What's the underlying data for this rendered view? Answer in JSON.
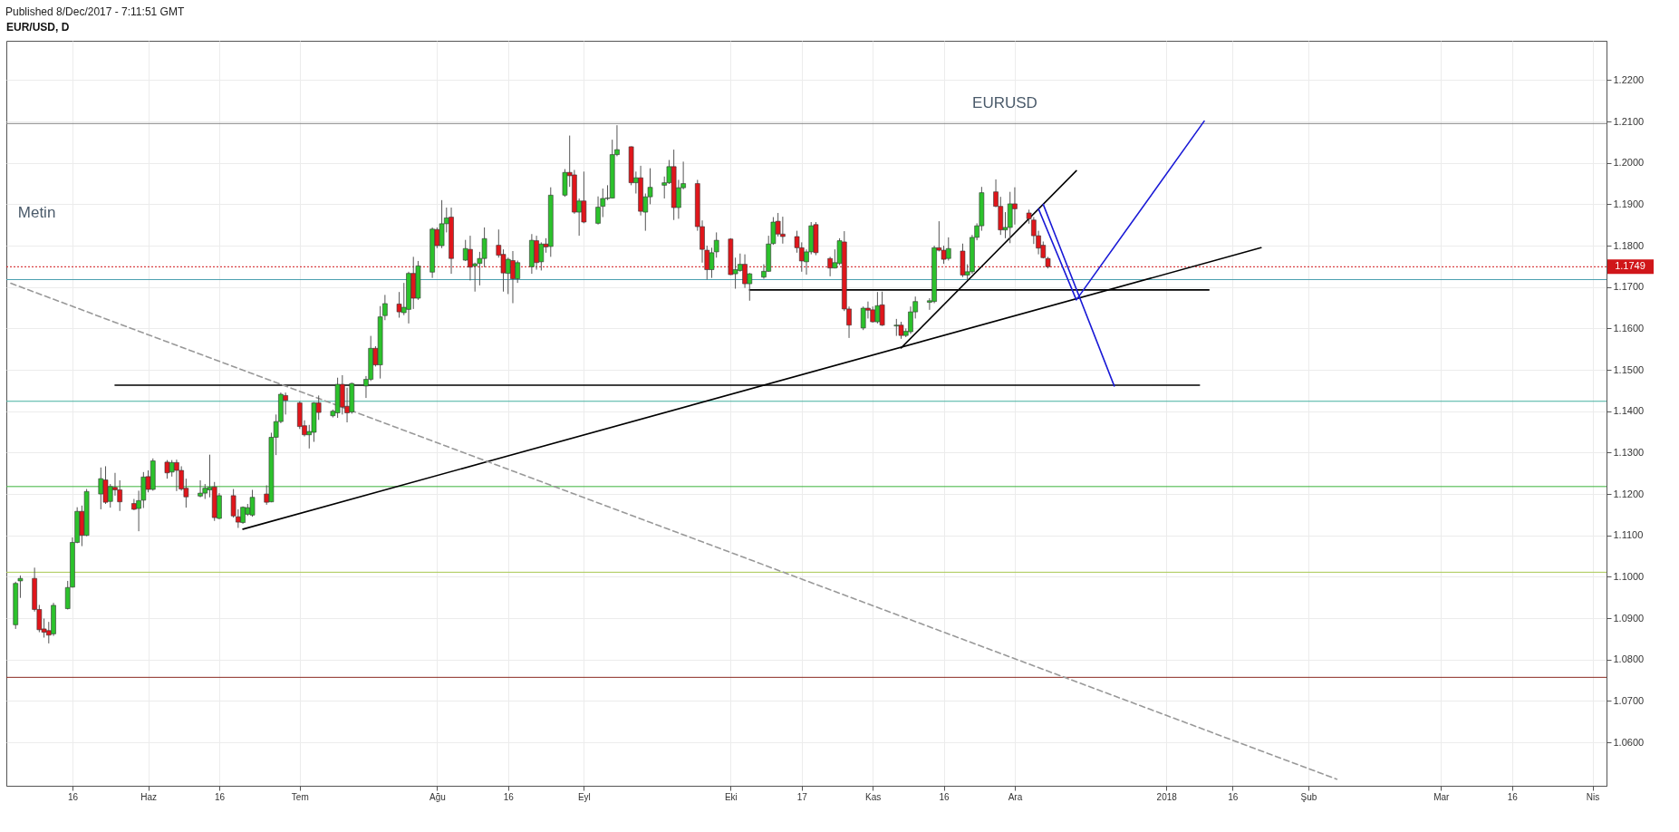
{
  "chart_data": {
    "type": "candlestick",
    "title": "EUR/USD, D",
    "annotations": [
      "Published 8/Dec/2017 - 7:11:51 GMT",
      "EURUSD",
      "Metin"
    ],
    "x": [
      "2017-05-04",
      "2017-05-05",
      "2017-05-08",
      "2017-05-09",
      "2017-05-10",
      "2017-05-11",
      "2017-05-12",
      "2017-05-15",
      "2017-05-16",
      "2017-05-17",
      "2017-05-18",
      "2017-05-19",
      "2017-05-22",
      "2017-05-23",
      "2017-05-24",
      "2017-05-25",
      "2017-05-26",
      "2017-05-29",
      "2017-05-30",
      "2017-05-31",
      "2017-06-01",
      "2017-06-02",
      "2017-06-05",
      "2017-06-06",
      "2017-06-07",
      "2017-06-08",
      "2017-06-09",
      "2017-06-12",
      "2017-06-13",
      "2017-06-14",
      "2017-06-15",
      "2017-06-16",
      "2017-06-19",
      "2017-06-20",
      "2017-06-21",
      "2017-06-22",
      "2017-06-23",
      "2017-06-26",
      "2017-06-27",
      "2017-06-28",
      "2017-06-29",
      "2017-06-30",
      "2017-07-03",
      "2017-07-04",
      "2017-07-05",
      "2017-07-06",
      "2017-07-07",
      "2017-07-10",
      "2017-07-11",
      "2017-07-12",
      "2017-07-13",
      "2017-07-14",
      "2017-07-17",
      "2017-07-18",
      "2017-07-19",
      "2017-07-20",
      "2017-07-21",
      "2017-07-24",
      "2017-07-25",
      "2017-07-26",
      "2017-07-27",
      "2017-07-28",
      "2017-07-31",
      "2017-08-01",
      "2017-08-02",
      "2017-08-03",
      "2017-08-04",
      "2017-08-07",
      "2017-08-08",
      "2017-08-09",
      "2017-08-10",
      "2017-08-11",
      "2017-08-14",
      "2017-08-15",
      "2017-08-16",
      "2017-08-17",
      "2017-08-18",
      "2017-08-21",
      "2017-08-22",
      "2017-08-23",
      "2017-08-24",
      "2017-08-25",
      "2017-08-28",
      "2017-08-29",
      "2017-08-30",
      "2017-08-31",
      "2017-09-01",
      "2017-09-04",
      "2017-09-05",
      "2017-09-06",
      "2017-09-07",
      "2017-09-08",
      "2017-09-11",
      "2017-09-12",
      "2017-09-13",
      "2017-09-14",
      "2017-09-15",
      "2017-09-18",
      "2017-09-19",
      "2017-09-20",
      "2017-09-21",
      "2017-09-22",
      "2017-09-25",
      "2017-09-26",
      "2017-09-27",
      "2017-09-28",
      "2017-09-29",
      "2017-10-02",
      "2017-10-03",
      "2017-10-04",
      "2017-10-05",
      "2017-10-06",
      "2017-10-09",
      "2017-10-10",
      "2017-10-11",
      "2017-10-12",
      "2017-10-13",
      "2017-10-16",
      "2017-10-17",
      "2017-10-18",
      "2017-10-19",
      "2017-10-20",
      "2017-10-23",
      "2017-10-24",
      "2017-10-25",
      "2017-10-26",
      "2017-10-27",
      "2017-10-30",
      "2017-10-31",
      "2017-11-01",
      "2017-11-02",
      "2017-11-03",
      "2017-11-06",
      "2017-11-07",
      "2017-11-08",
      "2017-11-09",
      "2017-11-10",
      "2017-11-13",
      "2017-11-14",
      "2017-11-15",
      "2017-11-16",
      "2017-11-17",
      "2017-11-20",
      "2017-11-21",
      "2017-11-22",
      "2017-11-23",
      "2017-11-24",
      "2017-11-27",
      "2017-11-28",
      "2017-11-29",
      "2017-11-30",
      "2017-12-01",
      "2017-12-04",
      "2017-12-05",
      "2017-12-06",
      "2017-12-07",
      "2017-12-08"
    ],
    "ohlc": [
      [
        1.0884,
        1.0988,
        1.0874,
        1.0984
      ],
      [
        1.099,
        1.1003,
        1.0949,
        1.0996
      ],
      [
        1.0996,
        1.1022,
        1.0916,
        1.0921
      ],
      [
        1.0921,
        1.0932,
        1.0866,
        1.0872
      ],
      [
        1.0874,
        1.0899,
        1.0853,
        1.0866
      ],
      [
        1.087,
        1.0891,
        1.0839,
        1.0859
      ],
      [
        1.0862,
        1.0937,
        1.0857,
        1.0931
      ],
      [
        1.0923,
        1.099,
        1.0921,
        1.0974
      ],
      [
        1.0975,
        1.1095,
        1.0974,
        1.1083
      ],
      [
        1.1083,
        1.1168,
        1.1081,
        1.1158
      ],
      [
        1.1158,
        1.1172,
        1.1074,
        1.11
      ],
      [
        1.11,
        1.1212,
        1.1098,
        1.1206
      ],
      [
        1.12,
        1.1264,
        1.1163,
        1.1237
      ],
      [
        1.1234,
        1.1267,
        1.1176,
        1.118
      ],
      [
        1.1182,
        1.1224,
        1.1167,
        1.1218
      ],
      [
        1.1216,
        1.1251,
        1.1196,
        1.121
      ],
      [
        1.121,
        1.1233,
        1.1159,
        1.1181
      ],
      [
        1.1177,
        1.1188,
        1.1161,
        1.1163
      ],
      [
        1.1165,
        1.1208,
        1.111,
        1.1184
      ],
      [
        1.1185,
        1.1253,
        1.1166,
        1.1241
      ],
      [
        1.1242,
        1.1257,
        1.1204,
        1.1211
      ],
      [
        1.1211,
        1.1286,
        1.1208,
        1.128
      ],
      [
        1.1277,
        1.1282,
        1.1237,
        1.1251
      ],
      [
        1.1253,
        1.1282,
        1.1242,
        1.1276
      ],
      [
        1.1276,
        1.1283,
        1.1207,
        1.1257
      ],
      [
        1.1257,
        1.1267,
        1.1208,
        1.1212
      ],
      [
        1.1214,
        1.1237,
        1.1167,
        1.1193
      ],
      [
        1.1195,
        1.1233,
        1.1192,
        1.1202
      ],
      [
        1.1202,
        1.1224,
        1.1188,
        1.1214
      ],
      [
        1.121,
        1.1295,
        1.1192,
        1.1216
      ],
      [
        1.1217,
        1.1229,
        1.1135,
        1.1143
      ],
      [
        1.1141,
        1.1202,
        1.1139,
        1.1196
      ],
      [
        1.1196,
        1.1212,
        1.1143,
        1.1147
      ],
      [
        1.1145,
        1.1163,
        1.1118,
        1.1132
      ],
      [
        1.1131,
        1.117,
        1.1128,
        1.1168
      ],
      [
        1.1151,
        1.1176,
        1.1147,
        1.1167
      ],
      [
        1.1149,
        1.121,
        1.1145,
        1.1192
      ],
      [
        1.12,
        1.1221,
        1.1174,
        1.118
      ],
      [
        1.1181,
        1.1348,
        1.118,
        1.1337
      ],
      [
        1.1337,
        1.1392,
        1.1294,
        1.1375
      ],
      [
        1.1375,
        1.1445,
        1.1371,
        1.1441
      ],
      [
        1.1438,
        1.1445,
        1.1392,
        1.1426
      ],
      [
        1.142,
        1.1424,
        1.1357,
        1.1363
      ],
      [
        1.1365,
        1.1378,
        1.1339,
        1.1343
      ],
      [
        1.1343,
        1.1367,
        1.131,
        1.1351
      ],
      [
        1.1349,
        1.1422,
        1.1326,
        1.142
      ],
      [
        1.142,
        1.1438,
        1.1379,
        1.1397
      ],
      [
        1.1389,
        1.1404,
        1.1385,
        1.14
      ],
      [
        1.1396,
        1.1481,
        1.1384,
        1.1465
      ],
      [
        1.1465,
        1.1487,
        1.1392,
        1.141
      ],
      [
        1.1412,
        1.1457,
        1.1373,
        1.1396
      ],
      [
        1.1398,
        1.1469,
        1.1394,
        1.1467
      ],
      [
        1.1461,
        1.1485,
        1.1432,
        1.1477
      ],
      [
        1.1477,
        1.1582,
        1.1473,
        1.1552
      ],
      [
        1.1552,
        1.1557,
        1.1508,
        1.1512
      ],
      [
        1.1512,
        1.1654,
        1.1479,
        1.1628
      ],
      [
        1.1631,
        1.1681,
        1.162,
        1.166
      ],
      [
        1.1659,
        1.1688,
        1.1626,
        1.164
      ],
      [
        1.1638,
        1.171,
        1.1632,
        1.1651
      ],
      [
        1.1646,
        1.1737,
        1.1612,
        1.1733
      ],
      [
        1.1733,
        1.1773,
        1.1647,
        1.1673
      ],
      [
        1.1673,
        1.1763,
        1.1669,
        1.1751
      ],
      [
        1.1736,
        1.1844,
        1.1722,
        1.184
      ],
      [
        1.1839,
        1.1844,
        1.1794,
        1.18
      ],
      [
        1.18,
        1.191,
        1.1794,
        1.1853
      ],
      [
        1.1853,
        1.1892,
        1.1832,
        1.1867
      ],
      [
        1.1869,
        1.1892,
        1.1732,
        1.1769
      ],
      [
        1.1765,
        1.1814,
        1.1763,
        1.1793
      ],
      [
        1.1791,
        1.1824,
        1.1716,
        1.1748
      ],
      [
        1.1751,
        1.1759,
        1.1689,
        1.1756
      ],
      [
        1.1757,
        1.1785,
        1.1704,
        1.1769
      ],
      [
        1.1769,
        1.1844,
        1.1748,
        1.1817
      ],
      [
        1.1801,
        1.1839,
        1.1771,
        1.1777
      ],
      [
        1.1779,
        1.1791,
        1.1689,
        1.1734
      ],
      [
        1.1733,
        1.1771,
        1.1683,
        1.1767
      ],
      [
        1.1764,
        1.1787,
        1.1661,
        1.172
      ],
      [
        1.172,
        1.1764,
        1.171,
        1.1759
      ],
      [
        1.1749,
        1.1828,
        1.1732,
        1.1813
      ],
      [
        1.1812,
        1.1824,
        1.1742,
        1.1759
      ],
      [
        1.1761,
        1.1808,
        1.174,
        1.1804
      ],
      [
        1.1804,
        1.1818,
        1.1783,
        1.1797
      ],
      [
        1.1798,
        1.1941,
        1.1773,
        1.1922
      ],
      [
        1.1922,
        1.1985,
        1.1918,
        1.1977
      ],
      [
        1.1977,
        1.2066,
        1.1942,
        1.1969
      ],
      [
        1.1971,
        1.1983,
        1.1877,
        1.1881
      ],
      [
        1.1881,
        1.1914,
        1.1824,
        1.1908
      ],
      [
        1.1908,
        1.1979,
        1.1854,
        1.1857
      ],
      [
        1.1854,
        1.1919,
        1.1851,
        1.1893
      ],
      [
        1.1895,
        1.1938,
        1.1869,
        1.1914
      ],
      [
        1.1914,
        1.1946,
        1.191,
        1.1915
      ],
      [
        1.1915,
        1.2056,
        1.1914,
        1.202
      ],
      [
        1.202,
        1.2091,
        1.2016,
        1.2032
      ],
      [
        1.2039,
        1.204,
        1.1946,
        1.1952
      ],
      [
        1.1952,
        1.1979,
        1.1926,
        1.1964
      ],
      [
        1.1964,
        1.1993,
        1.1873,
        1.1883
      ],
      [
        1.1881,
        1.1926,
        1.1836,
        1.1918
      ],
      [
        1.1918,
        1.1987,
        1.19,
        1.1941
      ],
      [
        1.1946,
        1.1967,
        1.1914,
        1.1952
      ],
      [
        1.1952,
        1.2007,
        1.1949,
        1.1991
      ],
      [
        1.1991,
        1.2032,
        1.1862,
        1.1892
      ],
      [
        1.1892,
        1.1959,
        1.1865,
        1.194
      ],
      [
        1.194,
        1.2003,
        1.1936,
        1.195
      ],
      [
        1.195,
        1.1959,
        1.1836,
        1.1846
      ],
      [
        1.1846,
        1.1861,
        1.1759,
        1.1791
      ],
      [
        1.1789,
        1.18,
        1.1718,
        1.1742
      ],
      [
        1.1742,
        1.1795,
        1.1722,
        1.1783
      ],
      [
        1.1785,
        1.1832,
        1.1771,
        1.1813
      ],
      [
        1.1816,
        1.1818,
        1.1729,
        1.173
      ],
      [
        1.1732,
        1.1771,
        1.1696,
        1.1742
      ],
      [
        1.174,
        1.1781,
        1.1737,
        1.1755
      ],
      [
        1.1755,
        1.1779,
        1.1698,
        1.1708
      ],
      [
        1.1708,
        1.1734,
        1.1667,
        1.1732
      ],
      [
        1.1724,
        1.1755,
        1.172,
        1.1738
      ],
      [
        1.1738,
        1.1824,
        1.1737,
        1.1804
      ],
      [
        1.1805,
        1.1869,
        1.1802,
        1.1857
      ],
      [
        1.1859,
        1.1879,
        1.1822,
        1.1828
      ],
      [
        1.1828,
        1.187,
        1.1805,
        1.1822
      ],
      [
        1.1822,
        1.1836,
        1.1783,
        1.1795
      ],
      [
        1.1795,
        1.1808,
        1.1737,
        1.1763
      ],
      [
        1.1761,
        1.1791,
        1.173,
        1.1785
      ],
      [
        1.1785,
        1.1857,
        1.1779,
        1.1848
      ],
      [
        1.1851,
        1.1857,
        1.1777,
        1.1783
      ],
      [
        1.1769,
        1.1773,
        1.1726,
        1.1746
      ],
      [
        1.1746,
        1.1791,
        1.1745,
        1.1759
      ],
      [
        1.1757,
        1.1818,
        1.1753,
        1.1812
      ],
      [
        1.1809,
        1.1835,
        1.1642,
        1.1647
      ],
      [
        1.1647,
        1.1653,
        1.1577,
        1.1608
      ],
      [
        1.1601,
        1.1653,
        1.1596,
        1.1649
      ],
      [
        1.1649,
        1.1665,
        1.1624,
        1.1644
      ],
      [
        1.1645,
        1.1653,
        1.1614,
        1.1616
      ],
      [
        1.1616,
        1.1688,
        1.1612,
        1.1655
      ],
      [
        1.1657,
        1.1689,
        1.1606,
        1.1608
      ],
      [
        1.1606,
        1.1623,
        1.1582,
        1.1608
      ],
      [
        1.1608,
        1.1616,
        1.1575,
        1.1583
      ],
      [
        1.1583,
        1.16,
        1.1579,
        1.1593
      ],
      [
        1.1592,
        1.1653,
        1.1587,
        1.164
      ],
      [
        1.164,
        1.1677,
        1.1624,
        1.1665
      ],
      [
        1.1663,
        1.1673,
        1.1645,
        1.1667
      ],
      [
        1.1665,
        1.18,
        1.1661,
        1.1795
      ],
      [
        1.1795,
        1.1859,
        1.1786,
        1.1789
      ],
      [
        1.1789,
        1.18,
        1.1756,
        1.1767
      ],
      [
        1.1769,
        1.182,
        1.1764,
        1.1793
      ],
      [
        1.1787,
        1.1805,
        1.1724,
        1.1729
      ],
      [
        1.1729,
        1.1755,
        1.1718,
        1.1737
      ],
      [
        1.1737,
        1.1826,
        1.1732,
        1.182
      ],
      [
        1.182,
        1.1854,
        1.1813,
        1.1848
      ],
      [
        1.1848,
        1.1942,
        1.1836,
        1.1928
      ],
      [
        1.193,
        1.196,
        1.1893,
        1.1895
      ],
      [
        1.1895,
        1.1918,
        1.1826,
        1.1838
      ],
      [
        1.1838,
        1.1881,
        1.1818,
        1.1844
      ],
      [
        1.1844,
        1.193,
        1.1806,
        1.1901
      ],
      [
        1.1901,
        1.1941,
        1.1851,
        1.1889
      ],
      [
        1.1879,
        1.1887,
        1.1853,
        1.1865
      ],
      [
        1.1862,
        1.1869,
        1.1804,
        1.1824
      ],
      [
        1.1824,
        1.1836,
        1.1779,
        1.1794
      ],
      [
        1.1801,
        1.181,
        1.1769,
        1.1771
      ],
      [
        1.1769,
        1.1773,
        1.1745,
        1.1749
      ]
    ],
    "colors": [
      "#2cc22c",
      "#2cc22c",
      "#e0161b",
      "#e0161b",
      "#e0161b",
      "#e0161b",
      "#2cc22c",
      "#2cc22c",
      "#2cc22c",
      "#2cc22c",
      "#e0161b",
      "#2cc22c",
      "#2cc22c",
      "#e0161b",
      "#2cc22c",
      "#e0161b",
      "#e0161b",
      "#e0161b",
      "#2cc22c",
      "#2cc22c",
      "#e0161b",
      "#2cc22c",
      "#e0161b",
      "#2cc22c",
      "#e0161b",
      "#e0161b",
      "#e0161b",
      "#2cc22c",
      "#2cc22c",
      "#2cc22c",
      "#e0161b",
      "#2cc22c",
      "#e0161b",
      "#e0161b",
      "#2cc22c",
      "#2cc22c",
      "#2cc22c",
      "#e0161b",
      "#2cc22c",
      "#2cc22c",
      "#2cc22c",
      "#e0161b",
      "#e0161b",
      "#e0161b",
      "#2cc22c",
      "#2cc22c",
      "#e0161b",
      "#2cc22c",
      "#2cc22c",
      "#e0161b",
      "#e0161b",
      "#2cc22c",
      "#2cc22c",
      "#2cc22c",
      "#e0161b",
      "#2cc22c",
      "#2cc22c",
      "#e0161b",
      "#2cc22c",
      "#2cc22c",
      "#e0161b",
      "#2cc22c",
      "#2cc22c",
      "#e0161b",
      "#2cc22c",
      "#2cc22c",
      "#e0161b",
      "#2cc22c",
      "#e0161b",
      "#2cc22c",
      "#2cc22c",
      "#2cc22c",
      "#e0161b",
      "#e0161b",
      "#2cc22c",
      "#e0161b",
      "#2cc22c",
      "#2cc22c",
      "#e0161b",
      "#2cc22c",
      "#e0161b",
      "#2cc22c",
      "#2cc22c",
      "#e0161b",
      "#e0161b",
      "#2cc22c",
      "#e0161b",
      "#2cc22c",
      "#2cc22c",
      "#2cc22c",
      "#2cc22c",
      "#2cc22c",
      "#e0161b",
      "#2cc22c",
      "#e0161b",
      "#2cc22c",
      "#2cc22c",
      "#2cc22c",
      "#2cc22c",
      "#e0161b",
      "#2cc22c",
      "#2cc22c",
      "#e0161b",
      "#e0161b",
      "#e0161b",
      "#2cc22c",
      "#2cc22c",
      "#e0161b",
      "#2cc22c",
      "#2cc22c",
      "#e0161b",
      "#2cc22c",
      "#2cc22c",
      "#2cc22c",
      "#2cc22c",
      "#e0161b",
      "#e0161b",
      "#e0161b",
      "#e0161b",
      "#2cc22c",
      "#2cc22c",
      "#e0161b",
      "#e0161b",
      "#2cc22c",
      "#2cc22c",
      "#e0161b",
      "#e0161b",
      "#2cc22c",
      "#e0161b",
      "#e0161b",
      "#2cc22c",
      "#e0161b",
      "#2cc22c",
      "#e0161b",
      "#2cc22c",
      "#2cc22c",
      "#2cc22c",
      "#2cc22c",
      "#2cc22c",
      "#e0161b",
      "#e0161b",
      "#2cc22c",
      "#e0161b",
      "#2cc22c",
      "#2cc22c",
      "#2cc22c",
      "#2cc22c",
      "#e0161b",
      "#e0161b",
      "#2cc22c",
      "#2cc22c",
      "#e0161b",
      "#e0161b",
      "#e0161b",
      "#e0161b",
      "#e0161b",
      "#e0161b"
    ],
    "series": [
      {
        "type": "line",
        "color": "#000000",
        "x": [
          "2017-05-25",
          "2018-01-09"
        ],
        "values": [
          1.1463,
          1.1463
        ]
      },
      {
        "type": "line",
        "color": "#000000",
        "x": [
          "2017-10-06",
          "2018-01-11"
        ],
        "values": [
          1.1693,
          1.1693
        ]
      },
      {
        "type": "line",
        "color": "#000000",
        "x": [
          "2017-06-21",
          "2018-01-22"
        ],
        "values": [
          1.1115,
          1.1795
        ]
      },
      {
        "type": "line",
        "color": "#000000",
        "x": [
          "2017-11-07",
          "2017-12-14"
        ],
        "values": [
          1.1553,
          1.1981
        ]
      },
      {
        "type": "line",
        "color": "#999999",
        "line_style": "dashed",
        "x": [
          "2017-05-03",
          "2018-02-07"
        ],
        "values": [
          1.1709,
          1.0511
        ]
      },
      {
        "type": "line",
        "color": "#1a1ad6",
        "x": [
          "2017-12-06",
          "2017-12-14",
          "2018-01-10"
        ],
        "values": [
          1.1889,
          1.1669,
          1.2101
        ]
      },
      {
        "type": "line",
        "color": "#1a1ad6",
        "x": [
          "2017-12-07",
          "2017-12-22"
        ],
        "values": [
          1.19,
          1.1461
        ]
      }
    ],
    "ref_lines": [
      {
        "axis": "y",
        "value": 1.2095,
        "color": "#888888"
      },
      {
        "axis": "y",
        "value": 1.1749,
        "label": "1.1749",
        "color": "#d0161a",
        "line_style": "dotted"
      },
      {
        "axis": "y",
        "value": 1.1718,
        "color": "#4a9fb0"
      },
      {
        "axis": "y",
        "value": 1.1424,
        "color": "#45b0a0"
      },
      {
        "axis": "y",
        "value": 1.1218,
        "color": "#3cb43c"
      },
      {
        "axis": "y",
        "value": 1.1011,
        "color": "#a8c850"
      },
      {
        "axis": "y",
        "value": 1.0757,
        "color": "#8b2a20"
      }
    ],
    "xlim": [
      "2017-05-03",
      "2018-04-04"
    ],
    "xticks": [
      {
        "value": "2017-05-16",
        "label": "16"
      },
      {
        "value": "2017-06-01",
        "label": "Haz"
      },
      {
        "value": "2017-06-16",
        "label": "16"
      },
      {
        "value": "2017-07-03",
        "label": "Tem"
      },
      {
        "value": "2017-08-01",
        "label": "Ağu"
      },
      {
        "value": "2017-08-16",
        "label": "16"
      },
      {
        "value": "2017-09-01",
        "label": "Eyl"
      },
      {
        "value": "2017-10-02",
        "label": "Eki"
      },
      {
        "value": "2017-10-17",
        "label": "17"
      },
      {
        "value": "2017-11-01",
        "label": "Kas"
      },
      {
        "value": "2017-11-16",
        "label": "16"
      },
      {
        "value": "2017-12-01",
        "label": "Ara"
      },
      {
        "value": "2018-01-02",
        "label": "2018"
      },
      {
        "value": "2018-01-16",
        "label": "16"
      },
      {
        "value": "2018-02-01",
        "label": "Şub"
      },
      {
        "value": "2018-03-01",
        "label": "Mar"
      },
      {
        "value": "2018-03-16",
        "label": "16"
      },
      {
        "value": "2018-04-02",
        "label": "Nis"
      }
    ],
    "ylim": [
      1.0495,
      1.2295
    ],
    "yticks": [
      {
        "value": 1.06,
        "label": "1.0600"
      },
      {
        "value": 1.07,
        "label": "1.0700"
      },
      {
        "value": 1.08,
        "label": "1.0800"
      },
      {
        "value": 1.09,
        "label": "1.0900"
      },
      {
        "value": 1.1,
        "label": "1.1000"
      },
      {
        "value": 1.11,
        "label": "1.1100"
      },
      {
        "value": 1.12,
        "label": "1.1200"
      },
      {
        "value": 1.13,
        "label": "1.1300"
      },
      {
        "value": 1.14,
        "label": "1.1400"
      },
      {
        "value": 1.15,
        "label": "1.1500"
      },
      {
        "value": 1.16,
        "label": "1.1600"
      },
      {
        "value": 1.17,
        "label": "1.1700"
      },
      {
        "value": 1.18,
        "label": "1.1800"
      },
      {
        "value": 1.19,
        "label": "1.1900"
      },
      {
        "value": 1.2,
        "label": "1.2000"
      },
      {
        "value": 1.21,
        "label": "1.2100"
      },
      {
        "value": 1.22,
        "label": "1.2200"
      }
    ],
    "grid": true
  }
}
